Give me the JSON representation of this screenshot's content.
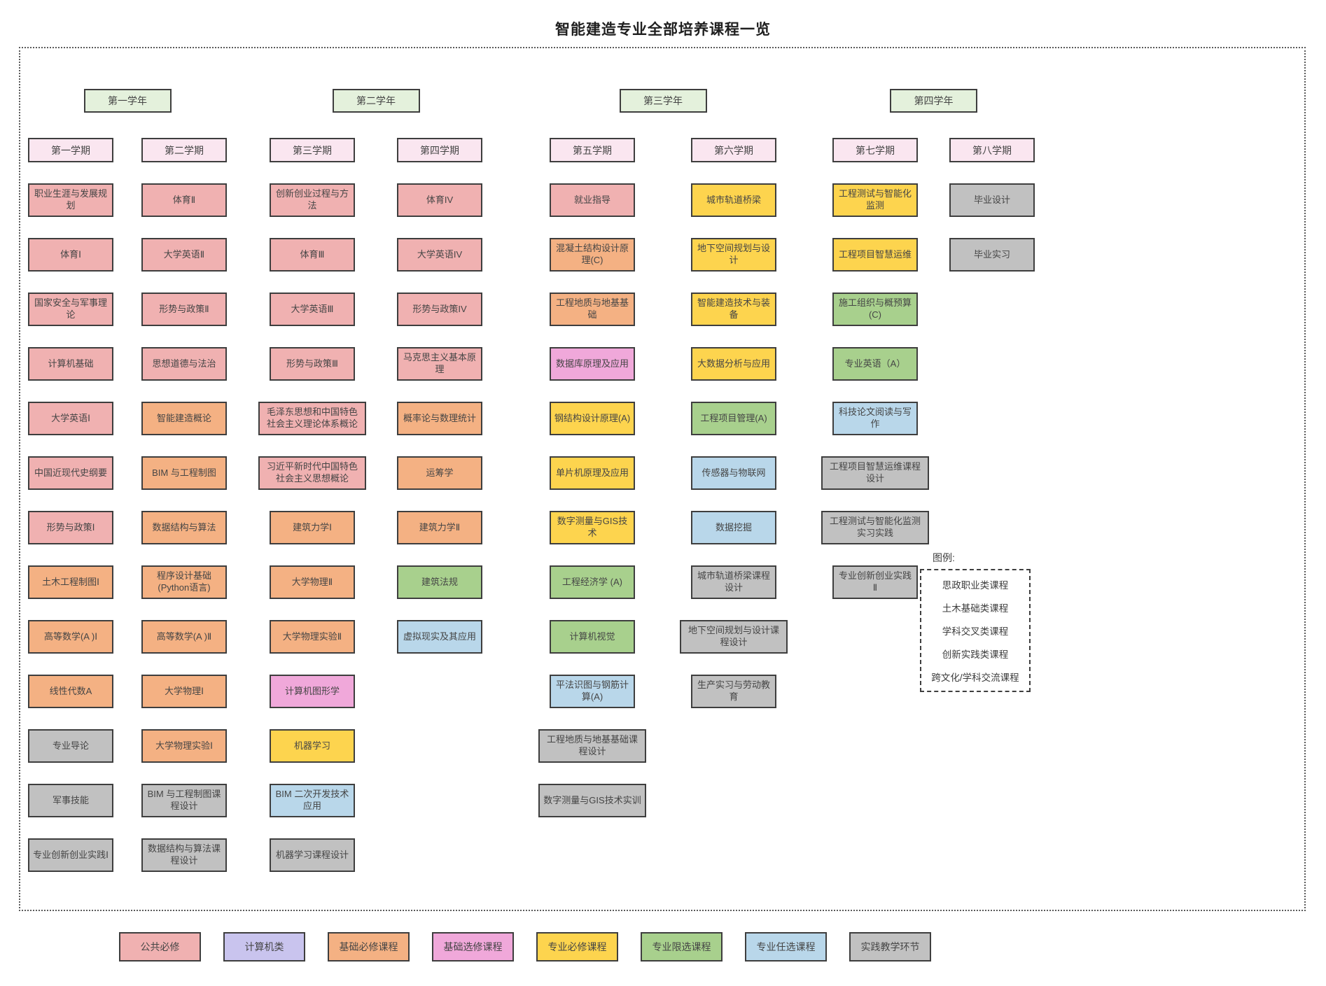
{
  "title": "智能建造专业全部培养课程一览",
  "category_colors": {
    "public": "#f0b1b1",
    "computer": "#c9c4ee",
    "basic_req": "#f4b183",
    "basic_elec": "#f0a8da",
    "prof_req": "#fdd44e",
    "prof_lim": "#a8d08d",
    "prof_opt": "#b9d7ea",
    "practice": "#c1c1c1"
  },
  "header_colors": {
    "year": "#e4f1dc",
    "semester": "#fae6f0"
  },
  "years": [
    {
      "label": "第一学年",
      "semesters": [
        {
          "label": "第一学期",
          "courses": [
            {
              "name": "职业生涯与发展规划",
              "category": "public"
            },
            {
              "name": "体育Ⅰ",
              "category": "public"
            },
            {
              "name": "国家安全与军事理论",
              "category": "public"
            },
            {
              "name": "计算机基础",
              "category": "public"
            },
            {
              "name": "大学英语Ⅰ",
              "category": "public"
            },
            {
              "name": "中国近现代史纲要",
              "category": "public"
            },
            {
              "name": "形势与政策Ⅰ",
              "category": "public"
            },
            {
              "name": "土木工程制图Ⅰ",
              "category": "basic_req"
            },
            {
              "name": "高等数学(A )Ⅰ",
              "category": "basic_req"
            },
            {
              "name": "线性代数A",
              "category": "basic_req"
            },
            {
              "name": "专业导论",
              "category": "practice"
            },
            {
              "name": "军事技能",
              "category": "practice"
            },
            {
              "name": "专业创新创业实践Ⅰ",
              "category": "practice"
            }
          ]
        },
        {
          "label": "第二学期",
          "courses": [
            {
              "name": "体育Ⅱ",
              "category": "public"
            },
            {
              "name": "大学英语Ⅱ",
              "category": "public"
            },
            {
              "name": "形势与政策Ⅱ",
              "category": "public"
            },
            {
              "name": "思想道德与法治",
              "category": "public"
            },
            {
              "name": "智能建造概论",
              "category": "basic_req"
            },
            {
              "name": "BIM 与工程制图",
              "category": "basic_req"
            },
            {
              "name": "数据结构与算法",
              "category": "basic_req"
            },
            {
              "name": "程序设计基础(Python语言)",
              "category": "basic_req"
            },
            {
              "name": "高等数学(A )Ⅱ",
              "category": "basic_req"
            },
            {
              "name": "大学物理Ⅰ",
              "category": "basic_req"
            },
            {
              "name": "大学物理实验Ⅰ",
              "category": "basic_req"
            },
            {
              "name": "BIM 与工程制图课程设计",
              "category": "practice"
            },
            {
              "name": "数据结构与算法课程设计",
              "category": "practice"
            }
          ]
        }
      ]
    },
    {
      "label": "第二学年",
      "semesters": [
        {
          "label": "第三学期",
          "courses": [
            {
              "name": "创新创业过程与方法",
              "category": "public"
            },
            {
              "name": "体育Ⅲ",
              "category": "public"
            },
            {
              "name": "大学英语Ⅲ",
              "category": "public"
            },
            {
              "name": "形势与政策Ⅲ",
              "category": "public"
            },
            {
              "name": "毛泽东思想和中国特色社会主义理论体系概论",
              "category": "public",
              "wide": true
            },
            {
              "name": "习近平新时代中国特色社会主义思想概论",
              "category": "public",
              "wide": true
            },
            {
              "name": "建筑力学Ⅰ",
              "category": "basic_req"
            },
            {
              "name": "大学物理Ⅱ",
              "category": "basic_req"
            },
            {
              "name": "大学物理实验Ⅱ",
              "category": "basic_req"
            },
            {
              "name": "计算机图形学",
              "category": "basic_elec"
            },
            {
              "name": "机器学习",
              "category": "prof_req"
            },
            {
              "name": "BIM 二次开发技术应用",
              "category": "prof_opt"
            },
            {
              "name": "机器学习课程设计",
              "category": "practice"
            }
          ]
        },
        {
          "label": "第四学期",
          "courses": [
            {
              "name": "体育IV",
              "category": "public"
            },
            {
              "name": "大学英语IV",
              "category": "public"
            },
            {
              "name": "形势与政策IV",
              "category": "public"
            },
            {
              "name": "马克思主义基本原理",
              "category": "public"
            },
            {
              "name": "概率论与数理统计",
              "category": "basic_req"
            },
            {
              "name": "运筹学",
              "category": "basic_req"
            },
            {
              "name": "建筑力学Ⅱ",
              "category": "basic_req"
            },
            {
              "name": "建筑法规",
              "category": "prof_lim"
            },
            {
              "name": "虚拟现实及其应用",
              "category": "prof_opt"
            }
          ]
        }
      ]
    },
    {
      "label": "第三学年",
      "semesters": [
        {
          "label": "第五学期",
          "courses": [
            {
              "name": "就业指导",
              "category": "public"
            },
            {
              "name": "混凝土结构设计原理(C)",
              "category": "basic_req"
            },
            {
              "name": "工程地质与地基基础",
              "category": "basic_req"
            },
            {
              "name": "数据库原理及应用",
              "category": "basic_elec"
            },
            {
              "name": "钢结构设计原理(A)",
              "category": "prof_req"
            },
            {
              "name": "单片机原理及应用",
              "category": "prof_req"
            },
            {
              "name": "数字测量与GIS技术",
              "category": "prof_req"
            },
            {
              "name": "工程经济学 (A)",
              "category": "prof_lim"
            },
            {
              "name": "计算机视觉",
              "category": "prof_lim"
            },
            {
              "name": "平法识图与钢筋计算(A)",
              "category": "prof_opt"
            },
            {
              "name": "工程地质与地基基础课程设计",
              "category": "practice",
              "wide": true
            },
            {
              "name": "数字测量与GIS技术实训",
              "category": "practice",
              "wide": true
            }
          ]
        },
        {
          "label": "第六学期",
          "courses": [
            {
              "name": "城市轨道桥梁",
              "category": "prof_req"
            },
            {
              "name": "地下空间规划与设计",
              "category": "prof_req"
            },
            {
              "name": "智能建造技术与装备",
              "category": "prof_req"
            },
            {
              "name": "大数据分析与应用",
              "category": "prof_req"
            },
            {
              "name": "工程项目管理(A)",
              "category": "prof_lim"
            },
            {
              "name": "传感器与物联网",
              "category": "prof_opt"
            },
            {
              "name": "数据挖掘",
              "category": "prof_opt"
            },
            {
              "name": "城市轨道桥梁课程设计",
              "category": "practice"
            },
            {
              "name": "地下空间规划与设计课程设计",
              "category": "practice",
              "wide": true
            },
            {
              "name": "生产实习与劳动教育",
              "category": "practice"
            }
          ]
        }
      ]
    },
    {
      "label": "第四学年",
      "semesters": [
        {
          "label": "第七学期",
          "courses": [
            {
              "name": "工程测试与智能化监测",
              "category": "prof_req"
            },
            {
              "name": "工程项目智慧运维",
              "category": "prof_req"
            },
            {
              "name": "施工组织与概预算(C)",
              "category": "prof_lim"
            },
            {
              "name": "专业英语（A）",
              "category": "prof_lim"
            },
            {
              "name": "科技论文阅读与写作",
              "category": "prof_opt"
            },
            {
              "name": "工程项目智慧运维课程设计",
              "category": "practice",
              "wide": true
            },
            {
              "name": "工程测试与智能化监测实习实践",
              "category": "practice",
              "wide": true
            },
            {
              "name": "专业创新创业实践Ⅱ",
              "category": "practice"
            }
          ]
        },
        {
          "label": "第八学期",
          "courses": [
            {
              "name": "毕业设计",
              "category": "practice"
            },
            {
              "name": "毕业实习",
              "category": "practice"
            }
          ]
        }
      ]
    }
  ],
  "legend_box": {
    "title": "图例:",
    "items": [
      "思政职业类课程",
      "土木基础类课程",
      "学科交叉类课程",
      "创新实践类课程",
      "跨文化/学科交流课程"
    ]
  },
  "category_legend": [
    {
      "label": "公共必修",
      "category": "public"
    },
    {
      "label": "计算机类",
      "category": "computer"
    },
    {
      "label": "基础必修课程",
      "category": "basic_req"
    },
    {
      "label": "基础选修课程",
      "category": "basic_elec"
    },
    {
      "label": "专业必修课程",
      "category": "prof_req"
    },
    {
      "label": "专业限选课程",
      "category": "prof_lim"
    },
    {
      "label": "专业任选课程",
      "category": "prof_opt"
    },
    {
      "label": "实践教学环节",
      "category": "practice"
    }
  ]
}
